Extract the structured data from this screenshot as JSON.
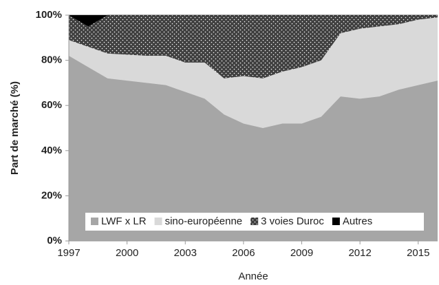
{
  "chart_data": {
    "type": "stacked_area",
    "x_label": "Année",
    "y_label": "Part de marché (%)",
    "x": [
      1997,
      1998,
      1999,
      2000,
      2001,
      2002,
      2003,
      2004,
      2005,
      2006,
      2007,
      2008,
      2009,
      2010,
      2011,
      2012,
      2013,
      2014,
      2015,
      2016
    ],
    "series": [
      {
        "name": "LWF x LR",
        "color": "#a6a6a6",
        "values": [
          82,
          77,
          72,
          71,
          70,
          69,
          66,
          63,
          56,
          52,
          50,
          52,
          52,
          55,
          64,
          63,
          64,
          67,
          69,
          71
        ]
      },
      {
        "name": "sino-européenne",
        "color": "#d9d9d9",
        "values": [
          7,
          9,
          11,
          11.5,
          12,
          13,
          13,
          16,
          16,
          21,
          22,
          23,
          25,
          25,
          28,
          31,
          31,
          29,
          29,
          28
        ]
      },
      {
        "name": "3 voies Duroc",
        "color": "#404040",
        "pattern": "dots",
        "values": [
          11,
          9,
          17,
          17.5,
          18,
          18,
          21,
          21,
          28,
          27,
          28,
          25,
          23,
          20,
          8,
          6,
          5,
          4,
          2,
          1
        ]
      },
      {
        "name": "Autres",
        "color": "#000000",
        "values": [
          0,
          5,
          0,
          0,
          0,
          0,
          0,
          0,
          0,
          0,
          0,
          0,
          0,
          0,
          0,
          0,
          0,
          0,
          0,
          0
        ]
      }
    ],
    "xlim": [
      1997,
      2016
    ],
    "xticks": [
      1997,
      2000,
      2003,
      2006,
      2009,
      2012,
      2015
    ],
    "ylim": [
      0,
      100
    ],
    "yticks": [
      {
        "value": 0,
        "label": "0%"
      },
      {
        "value": 20,
        "label": "20%"
      },
      {
        "value": 40,
        "label": "40%"
      },
      {
        "value": 60,
        "label": "60%"
      },
      {
        "value": 80,
        "label": "80%"
      },
      {
        "value": 100,
        "label": "100%"
      }
    ],
    "legend": "bottom"
  }
}
